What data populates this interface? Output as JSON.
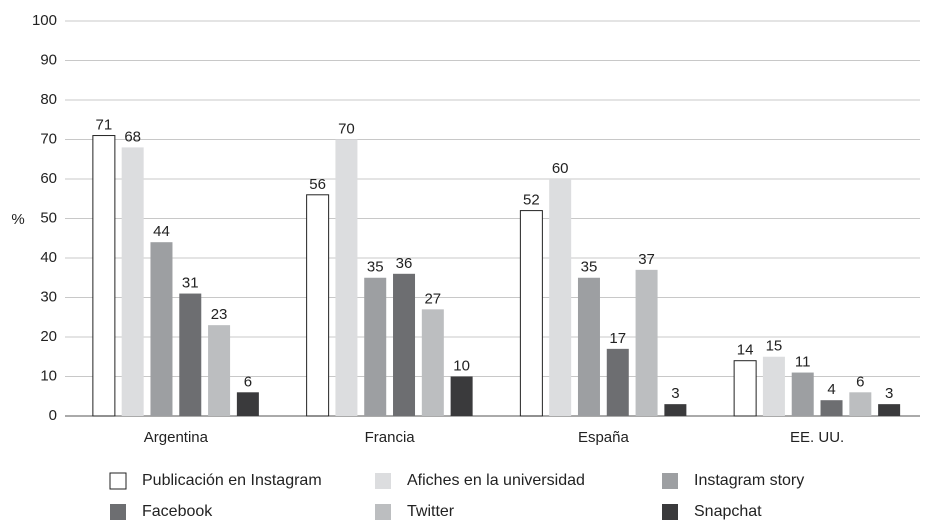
{
  "chart_data": {
    "type": "bar",
    "y_label": "%",
    "categories": [
      "Argentina",
      "Francia",
      "España",
      "EE. UU."
    ],
    "series": [
      {
        "name": "Publicación en Instagram",
        "color": "#ffffff",
        "values": [
          71,
          56,
          52,
          14
        ]
      },
      {
        "name": "Afiches en la universidad",
        "color": "#dcdddf",
        "values": [
          68,
          70,
          60,
          15
        ]
      },
      {
        "name": "Instagram story",
        "color": "#9d9fa2",
        "values": [
          44,
          35,
          35,
          11
        ]
      },
      {
        "name": "Facebook",
        "color": "#6d6e71",
        "values": [
          31,
          36,
          17,
          4
        ]
      },
      {
        "name": "Twitter",
        "color": "#bcbec0",
        "values": [
          23,
          27,
          37,
          6
        ]
      },
      {
        "name": "Snapchat",
        "color": "#3a3a3c",
        "values": [
          6,
          10,
          3,
          3
        ]
      }
    ],
    "ylim": [
      0,
      100
    ],
    "yticks": [
      0,
      10,
      20,
      30,
      40,
      50,
      60,
      70,
      80,
      90,
      100
    ],
    "grid": true
  }
}
